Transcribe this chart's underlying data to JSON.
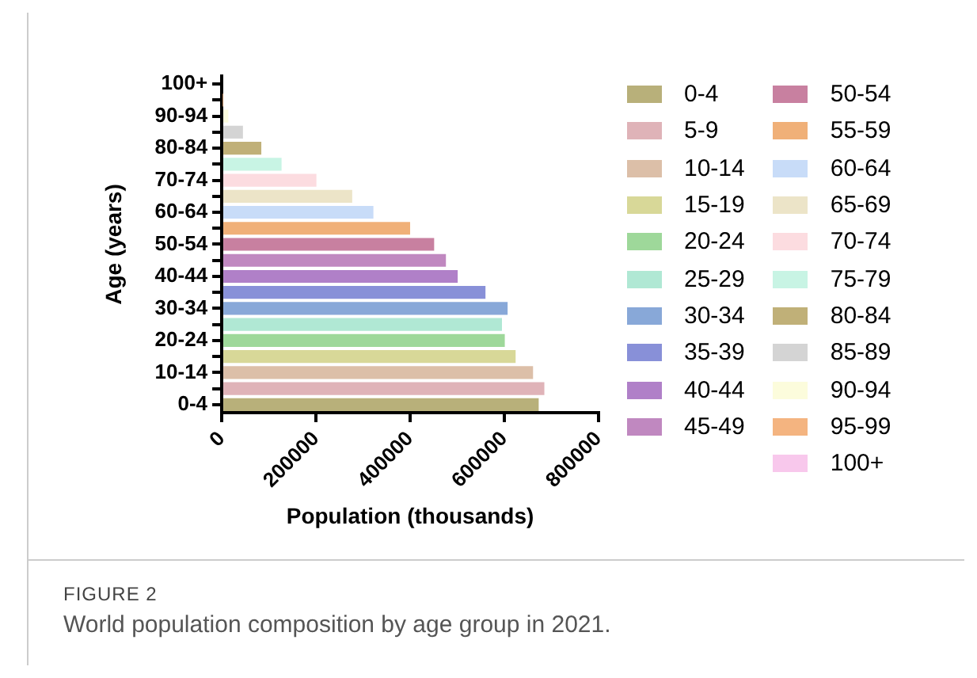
{
  "chart_data": {
    "type": "bar",
    "orientation": "horizontal",
    "xlabel": "Population (thousands)",
    "ylabel": "Age (years)",
    "categories": [
      "100+",
      null,
      "90-94",
      null,
      "80-84",
      null,
      "70-74",
      null,
      "60-64",
      null,
      "50-54",
      null,
      "40-44",
      null,
      "30-34",
      null,
      "20-24",
      null,
      "10-14",
      null,
      "0-4"
    ],
    "xlim": [
      0,
      800000
    ],
    "xticks": [
      0,
      200000,
      400000,
      600000,
      800000
    ],
    "grid": false,
    "legend": "right",
    "annotations": [
      "FIGURE 2",
      "World population composition by age group in 2021."
    ],
    "series": [
      {
        "name": "0-4",
        "color": "#b8b07a",
        "values": [
          null,
          null,
          null,
          null,
          null,
          null,
          null,
          null,
          null,
          null,
          null,
          null,
          null,
          null,
          null,
          null,
          null,
          null,
          null,
          null,
          673000
        ]
      },
      {
        "name": "5-9",
        "color": "#dfb3b8",
        "values": [
          null,
          null,
          null,
          null,
          null,
          null,
          null,
          null,
          null,
          null,
          null,
          null,
          null,
          null,
          null,
          null,
          null,
          null,
          null,
          685000,
          null
        ]
      },
      {
        "name": "10-14",
        "color": "#dcbfa8",
        "values": [
          null,
          null,
          null,
          null,
          null,
          null,
          null,
          null,
          null,
          null,
          null,
          null,
          null,
          null,
          null,
          null,
          null,
          null,
          661000,
          null,
          null
        ]
      },
      {
        "name": "15-19",
        "color": "#d8d898",
        "values": [
          null,
          null,
          null,
          null,
          null,
          null,
          null,
          null,
          null,
          null,
          null,
          null,
          null,
          null,
          null,
          null,
          null,
          624000,
          null,
          null,
          null
        ]
      },
      {
        "name": "20-24",
        "color": "#9ed89a",
        "values": [
          null,
          null,
          null,
          null,
          null,
          null,
          null,
          null,
          null,
          null,
          null,
          null,
          null,
          null,
          null,
          null,
          601000,
          null,
          null,
          null,
          null
        ]
      },
      {
        "name": "25-29",
        "color": "#b0e8d4",
        "values": [
          null,
          null,
          null,
          null,
          null,
          null,
          null,
          null,
          null,
          null,
          null,
          null,
          null,
          null,
          null,
          595000,
          null,
          null,
          null,
          null,
          null
        ]
      },
      {
        "name": "30-34",
        "color": "#88a8d8",
        "values": [
          null,
          null,
          null,
          null,
          null,
          null,
          null,
          null,
          null,
          null,
          null,
          null,
          null,
          null,
          607000,
          null,
          null,
          null,
          null,
          null,
          null
        ]
      },
      {
        "name": "35-39",
        "color": "#8890d8",
        "values": [
          null,
          null,
          null,
          null,
          null,
          null,
          null,
          null,
          null,
          null,
          null,
          null,
          null,
          560000,
          null,
          null,
          null,
          null,
          null,
          null,
          null
        ]
      },
      {
        "name": "40-44",
        "color": "#b080c8",
        "values": [
          null,
          null,
          null,
          null,
          null,
          null,
          null,
          null,
          null,
          null,
          null,
          null,
          501000,
          null,
          null,
          null,
          null,
          null,
          null,
          null,
          null
        ]
      },
      {
        "name": "45-49",
        "color": "#c088c0",
        "values": [
          null,
          null,
          null,
          null,
          null,
          null,
          null,
          null,
          null,
          null,
          null,
          476000,
          null,
          null,
          null,
          null,
          null,
          null,
          null,
          null,
          null
        ]
      },
      {
        "name": "50-54",
        "color": "#c880a0",
        "values": [
          null,
          null,
          null,
          null,
          null,
          null,
          null,
          null,
          null,
          null,
          451000,
          null,
          null,
          null,
          null,
          null,
          null,
          null,
          null,
          null,
          null
        ]
      },
      {
        "name": "55-59",
        "color": "#f0b078",
        "values": [
          null,
          null,
          null,
          null,
          null,
          null,
          null,
          null,
          null,
          400000,
          null,
          null,
          null,
          null,
          null,
          null,
          null,
          null,
          null,
          null,
          null
        ]
      },
      {
        "name": "60-64",
        "color": "#c8dcf8",
        "values": [
          null,
          null,
          null,
          null,
          null,
          null,
          null,
          null,
          322000,
          null,
          null,
          null,
          null,
          null,
          null,
          null,
          null,
          null,
          null,
          null,
          null
        ]
      },
      {
        "name": "65-69",
        "color": "#ece4c8",
        "values": [
          null,
          null,
          null,
          null,
          null,
          null,
          null,
          277000,
          null,
          null,
          null,
          null,
          null,
          null,
          null,
          null,
          null,
          null,
          null,
          null,
          null
        ]
      },
      {
        "name": "70-74",
        "color": "#fcdce0",
        "values": [
          null,
          null,
          null,
          null,
          null,
          null,
          201000,
          null,
          null,
          null,
          null,
          null,
          null,
          null,
          null,
          null,
          null,
          null,
          null,
          null,
          null
        ]
      },
      {
        "name": "75-79",
        "color": "#c8f4e4",
        "values": [
          null,
          null,
          null,
          null,
          null,
          127000,
          null,
          null,
          null,
          null,
          null,
          null,
          null,
          null,
          null,
          null,
          null,
          null,
          null,
          null,
          null
        ]
      },
      {
        "name": "80-84",
        "color": "#c0b078",
        "values": [
          null,
          null,
          null,
          null,
          84000,
          null,
          null,
          null,
          null,
          null,
          null,
          null,
          null,
          null,
          null,
          null,
          null,
          null,
          null,
          null,
          null
        ]
      },
      {
        "name": "85-89",
        "color": "#d4d4d4",
        "values": [
          null,
          null,
          null,
          45000,
          null,
          null,
          null,
          null,
          null,
          null,
          null,
          null,
          null,
          null,
          null,
          null,
          null,
          null,
          null,
          null,
          null
        ]
      },
      {
        "name": "90-94",
        "color": "#fcfcdc",
        "values": [
          null,
          null,
          14000,
          null,
          null,
          null,
          null,
          null,
          null,
          null,
          null,
          null,
          null,
          null,
          null,
          null,
          null,
          null,
          null,
          null,
          null
        ]
      },
      {
        "name": "95-99",
        "color": "#f4b480",
        "values": [
          null,
          2000,
          null,
          null,
          null,
          null,
          null,
          null,
          null,
          null,
          null,
          null,
          null,
          null,
          null,
          null,
          null,
          null,
          null,
          null,
          null
        ]
      },
      {
        "name": "100+",
        "color": "#f8c8ec",
        "values": [
          null,
          null,
          null,
          null,
          null,
          null,
          null,
          null,
          null,
          null,
          null,
          null,
          null,
          null,
          null,
          null,
          null,
          null,
          null,
          null,
          null
        ]
      }
    ]
  }
}
